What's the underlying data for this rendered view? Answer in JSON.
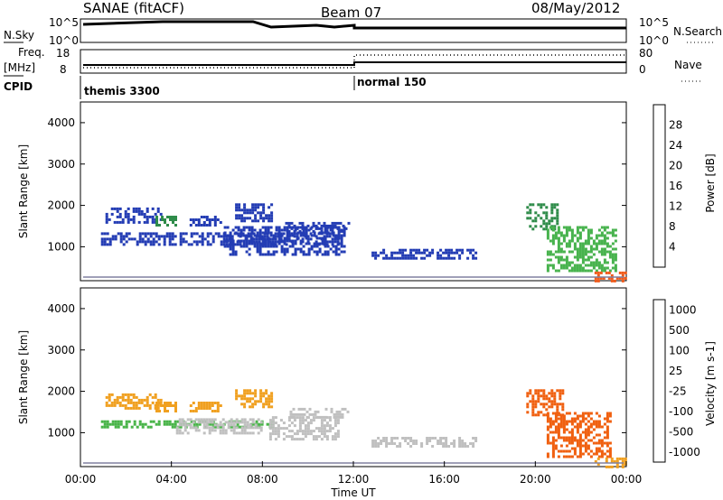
{
  "header": {
    "station": "SANAE (fitACF)",
    "beam": "Beam 07",
    "date": "08/May/2012"
  },
  "status_panels": {
    "nsky_label": "N.Sky",
    "nsky_ticks": [
      "10^5",
      "10^0"
    ],
    "nsearch_label": "N.Search",
    "nsearch_ticks": [
      "10^5",
      "10^0"
    ],
    "freq_label": "Freq.",
    "freq_unit": "[MHz]",
    "freq_ticks": [
      "18",
      "8"
    ],
    "nave_label": "Nave",
    "nave_ticks": [
      "80",
      "0"
    ],
    "cpid_label": "CPID",
    "modes": [
      {
        "name": "themis 3300",
        "start_hour": 0,
        "end_hour": 12
      },
      {
        "name": "normal 150",
        "start_hour": 12,
        "end_hour": 24
      }
    ]
  },
  "colors": {
    "power_scale": [
      "#1e24f0",
      "#233cb4",
      "#2f8c4a",
      "#48b34e",
      "#f0c020",
      "#f08c10",
      "#f05a1a",
      "#e82020"
    ],
    "velocity_scale": [
      "#2030c0",
      "#2f7a40",
      "#48b448",
      "#c0c0c0",
      "#e8d020",
      "#f0a020",
      "#f06010",
      "#e01010"
    ]
  },
  "chart_data": [
    {
      "type": "heatmap",
      "name": "power",
      "xlabel": "",
      "ylabel": "Slant Range [km]",
      "xlim": [
        0,
        24
      ],
      "ylim": [
        180,
        4500
      ],
      "yticks": [
        "1000",
        "2000",
        "3000",
        "4000"
      ],
      "colorbar_label": "Power [dB]",
      "colorbar_ticks": [
        "4",
        "8",
        "12",
        "16",
        "20",
        "24",
        "28"
      ],
      "colorbar_range": [
        0,
        32
      ],
      "regions": [
        {
          "t": [
            0.9,
            11.3
          ],
          "r": [
            1050,
            1350
          ],
          "v": 6
        },
        {
          "t": [
            6.3,
            11.6
          ],
          "r": [
            800,
            1500
          ],
          "v": 7
        },
        {
          "t": [
            6.8,
            8.4
          ],
          "r": [
            1650,
            2050
          ],
          "v": 6
        },
        {
          "t": [
            1.1,
            3.6
          ],
          "r": [
            1600,
            1950
          ],
          "v": 5
        },
        {
          "t": [
            3.3,
            4.2
          ],
          "r": [
            1550,
            1750
          ],
          "v": 9
        },
        {
          "t": [
            4.8,
            6.2
          ],
          "r": [
            1500,
            1750
          ],
          "v": 6
        },
        {
          "t": [
            9.0,
            11.8
          ],
          "r": [
            1350,
            1600
          ],
          "v": 6
        },
        {
          "t": [
            12.8,
            17.4
          ],
          "r": [
            750,
            950
          ],
          "v": 5
        },
        {
          "t": [
            19.6,
            21.0
          ],
          "r": [
            1400,
            2050
          ],
          "v": 8
        },
        {
          "t": [
            20.5,
            23.5
          ],
          "r": [
            400,
            1500
          ],
          "v": 13
        },
        {
          "t": [
            22.6,
            24.0
          ],
          "r": [
            200,
            400
          ],
          "v": 24
        }
      ]
    },
    {
      "type": "heatmap",
      "name": "velocity",
      "xlabel": "Time UT",
      "ylabel": "Slant Range [km]",
      "xlim": [
        0,
        24
      ],
      "ylim": [
        180,
        4500
      ],
      "xticks": [
        "00:00",
        "04:00",
        "08:00",
        "12:00",
        "16:00",
        "20:00",
        "00:00"
      ],
      "yticks": [
        "1000",
        "2000",
        "3000",
        "4000"
      ],
      "colorbar_label": "Velocity [m s-1]",
      "colorbar_ticks": [
        "1000",
        "500",
        "100",
        "25",
        "-25",
        "-100",
        "-500",
        "-1000"
      ],
      "regions": [
        {
          "t": [
            0.9,
            8.5
          ],
          "r": [
            1150,
            1300
          ],
          "v": 100
        },
        {
          "t": [
            4.2,
            8.0
          ],
          "r": [
            1000,
            1350
          ],
          "v": 60
        },
        {
          "t": [
            6.8,
            8.4
          ],
          "r": [
            1650,
            2050
          ],
          "v": -300
        },
        {
          "t": [
            1.1,
            3.6
          ],
          "r": [
            1600,
            1950
          ],
          "v": -200
        },
        {
          "t": [
            3.3,
            4.2
          ],
          "r": [
            1550,
            1750
          ],
          "v": -150
        },
        {
          "t": [
            4.8,
            6.2
          ],
          "r": [
            1500,
            1750
          ],
          "v": -150
        },
        {
          "t": [
            8.3,
            11.3
          ],
          "r": [
            850,
            1400
          ],
          "v": 0
        },
        {
          "t": [
            9.2,
            11.8
          ],
          "r": [
            1350,
            1600
          ],
          "v": 50
        },
        {
          "t": [
            12.8,
            17.4
          ],
          "r": [
            700,
            900
          ],
          "v": 0
        },
        {
          "t": [
            19.6,
            21.2
          ],
          "r": [
            1400,
            2050
          ],
          "v": -800
        },
        {
          "t": [
            20.5,
            23.3
          ],
          "r": [
            400,
            1500
          ],
          "v": -700
        },
        {
          "t": [
            22.6,
            24.0
          ],
          "r": [
            200,
            400
          ],
          "v": -300
        }
      ]
    }
  ]
}
